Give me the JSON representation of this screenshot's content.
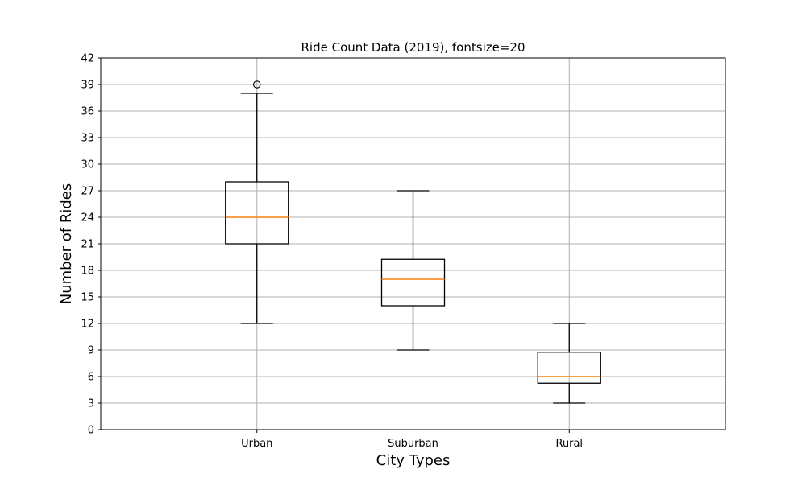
{
  "chart_data": {
    "type": "box",
    "title": "Ride Count Data (2019), fontsize=20",
    "xlabel": "City Types",
    "ylabel": "Number of Rides",
    "ylim": [
      0,
      42
    ],
    "yticks": [
      0,
      3,
      6,
      9,
      12,
      15,
      18,
      21,
      24,
      27,
      30,
      33,
      36,
      39,
      42
    ],
    "grid": true,
    "categories": [
      "Urban",
      "Suburban",
      "Rural"
    ],
    "boxes": [
      {
        "category": "Urban",
        "whisker_low": 12,
        "q1": 21,
        "median": 24,
        "q3": 28,
        "whisker_high": 38,
        "outliers": [
          39
        ]
      },
      {
        "category": "Suburban",
        "whisker_low": 9,
        "q1": 14,
        "median": 17,
        "q3": 19.25,
        "whisker_high": 27,
        "outliers": []
      },
      {
        "category": "Rural",
        "whisker_low": 3,
        "q1": 5.25,
        "median": 6,
        "q3": 8.75,
        "whisker_high": 12,
        "outliers": []
      }
    ],
    "colors": {
      "box": "#000000",
      "median": "#ff7f0e",
      "grid": "#b0b0b0"
    }
  }
}
